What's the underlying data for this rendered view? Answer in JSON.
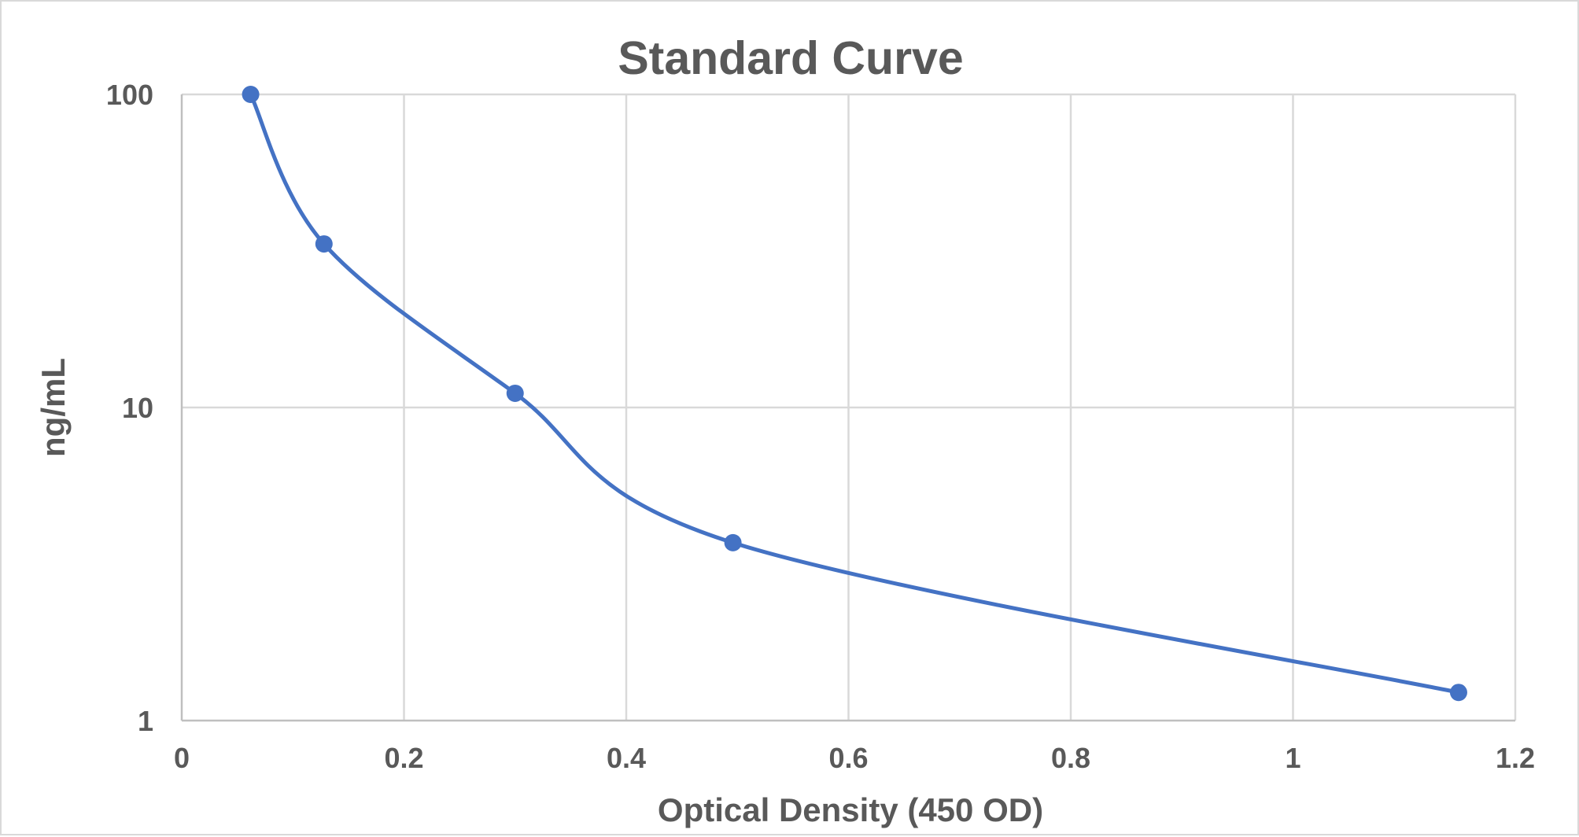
{
  "chart_data": {
    "type": "scatter",
    "title": "Standard Curve",
    "xlabel": "Optical Density (450 OD)",
    "ylabel": "ng/mL",
    "xlim": [
      0,
      1.2
    ],
    "ylim": [
      1,
      100
    ],
    "y_scale": "log",
    "x_ticks": [
      "0",
      "0.2",
      "0.4",
      "0.6",
      "0.8",
      "1",
      "1.2"
    ],
    "x_tick_values": [
      0,
      0.2,
      0.4,
      0.6,
      0.8,
      1,
      1.2
    ],
    "y_ticks": [
      "1",
      "10",
      "100"
    ],
    "y_tick_values": [
      1,
      10,
      100
    ],
    "grid": true,
    "smooth_line": true,
    "legend": "none",
    "series": [
      {
        "x": [
          0.062,
          0.128,
          0.3,
          0.496,
          1.149
        ],
        "y": [
          100,
          33.3,
          11.1,
          3.7,
          1.23
        ],
        "color": "#4472c4"
      }
    ]
  }
}
